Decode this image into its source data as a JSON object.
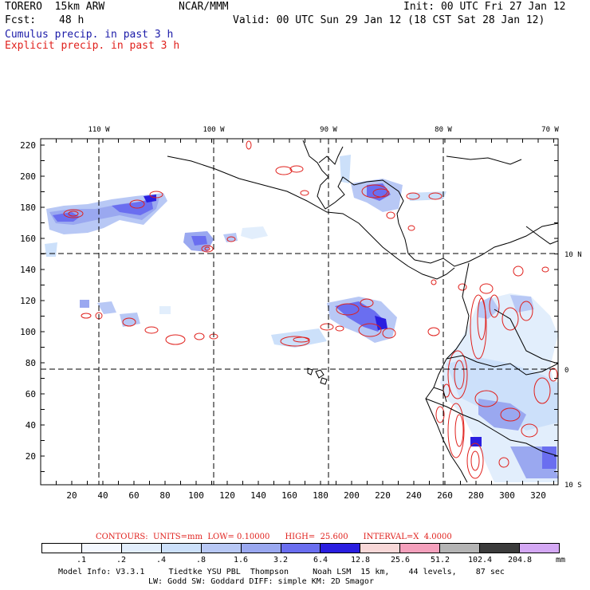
{
  "header": {
    "model": "TORERO  15km ARW",
    "org": "NCAR/MMM",
    "init": "Init: 00 UTC Fri 27 Jan 12",
    "fcst_label": "Fcst:",
    "fcst_value": "48 h",
    "valid": "Valid: 00 UTC Sun 29 Jan 12 (18 CST Sat 28 Jan 12)",
    "field1": "Cumulus precip. in past 3 h",
    "field2": "Explicit precip. in past 3 h"
  },
  "colors": {
    "field1": "#1a1aa8",
    "field2": "#e0201c",
    "precip_contour": "#e0201c",
    "coastline": "#000000"
  },
  "map": {
    "top_lon_labels": [
      "110 W",
      "100 W",
      "90 W",
      "80 W",
      "70 W"
    ],
    "right_lat_labels": [
      "10 N",
      "0",
      "10 S"
    ],
    "left_ticks": [
      "220",
      "200",
      "180",
      "160",
      "140",
      "120",
      "100",
      "80",
      "60",
      "40",
      "20"
    ],
    "bottom_ticks": [
      "20",
      "40",
      "60",
      "80",
      "100",
      "120",
      "140",
      "160",
      "180",
      "200",
      "220",
      "240",
      "260",
      "280",
      "300",
      "320"
    ]
  },
  "contours": {
    "line": "CONTOURS:  UNITS=mm  LOW= 0.10000      HIGH=  25.600      INTERVAL=X  4.0000"
  },
  "legend": {
    "unit": "mm",
    "labels": [
      ".1",
      ".2",
      ".4",
      ".8",
      "1.6",
      "3.2",
      "6.4",
      "12.8",
      "25.6",
      "51.2",
      "102.4",
      "204.8"
    ],
    "colors": [
      "#ffffff",
      "#f4f8ff",
      "#e2eefc",
      "#cce0fa",
      "#b8c8f5",
      "#9aa8f0",
      "#6a6ef0",
      "#2a1ee0",
      "#f8d8d8",
      "#f4a0bc",
      "#b4b4b4",
      "#3c3c3c",
      "#d4a8f4"
    ]
  },
  "footer": {
    "line1": "Model Info: V3.3.1     Tiedtke YSU PBL  Thompson     Noah LSM  15 km,    44 levels,    87 sec",
    "line2": "LW: Godd SW: Goddard DIFF: simple KM: 2D Smagor"
  }
}
